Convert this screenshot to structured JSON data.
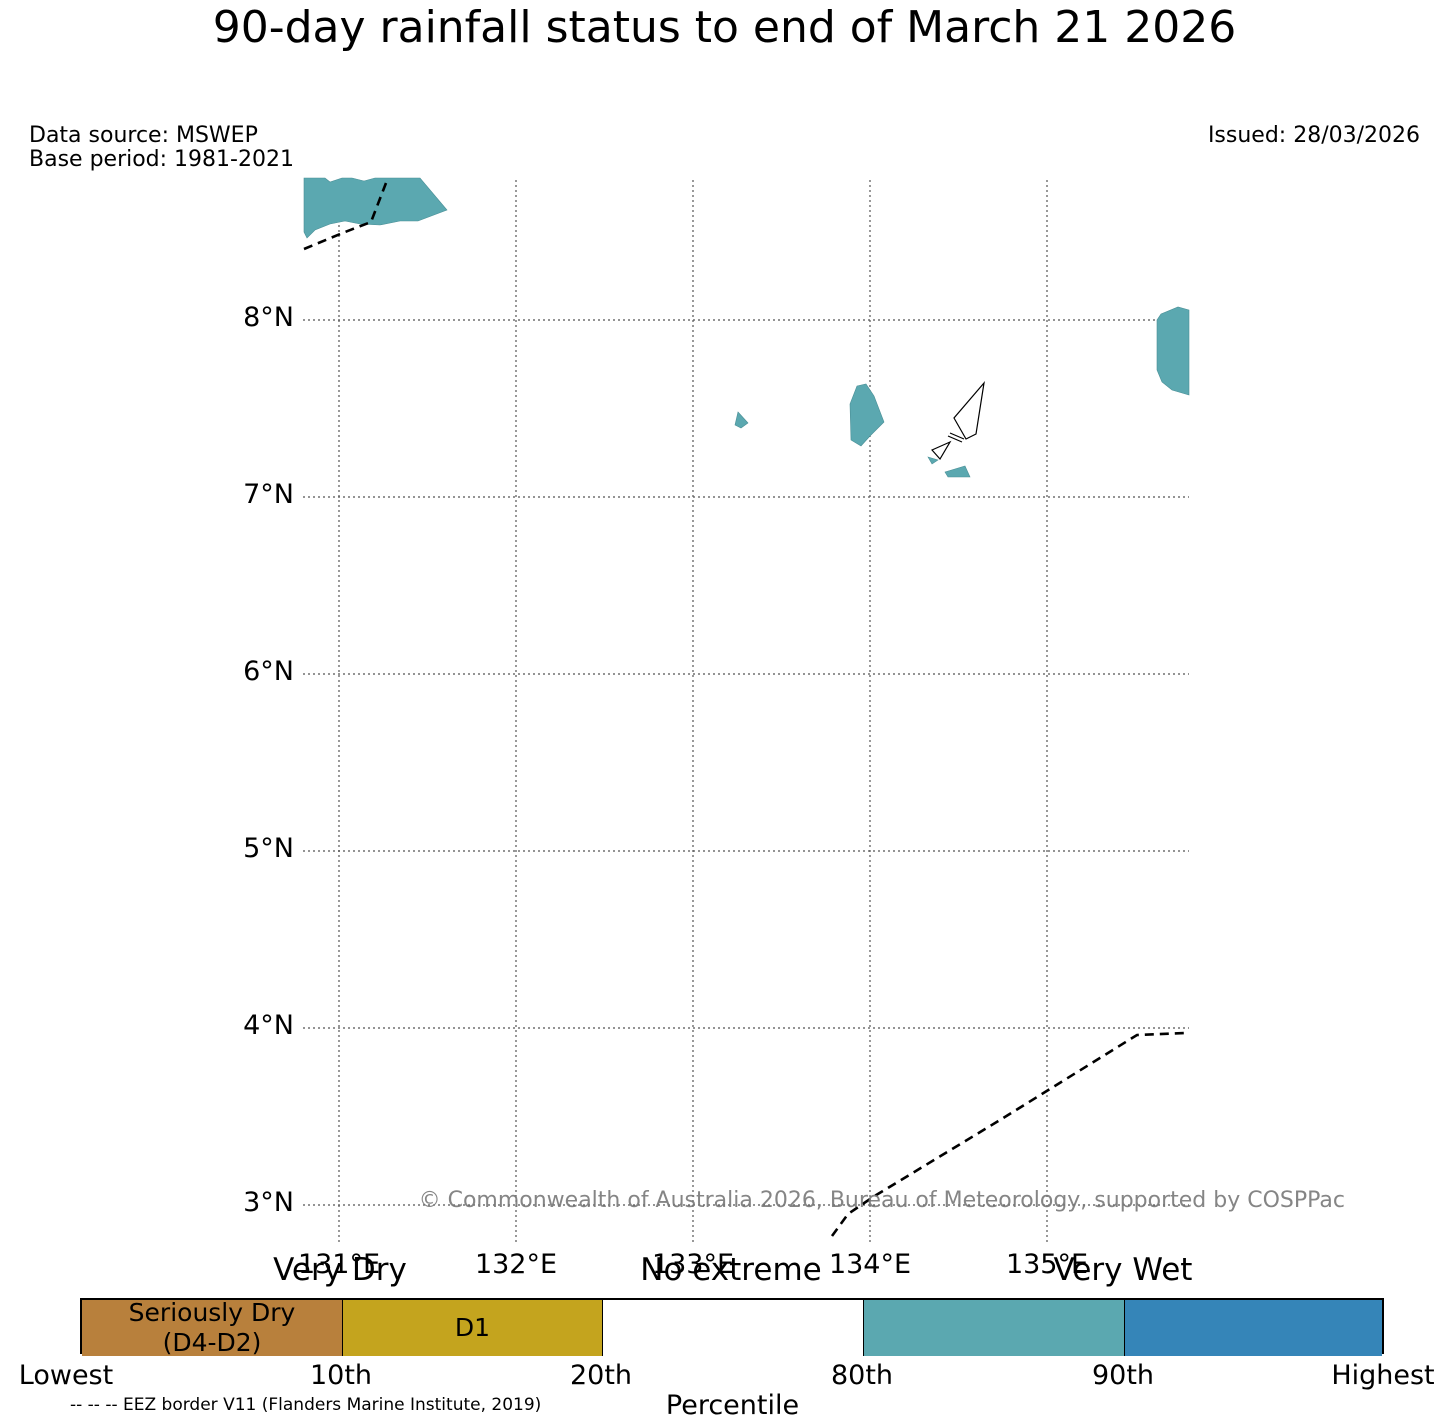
{
  "title": "90-day rainfall status to end of March 21 2026",
  "header": {
    "data_source": "Data source: MSWEP",
    "base_period": "Base period: 1981-2021",
    "issued": "Issued: 28/03/2026"
  },
  "map": {
    "lat_labels": [
      "8°N",
      "7°N",
      "6°N",
      "5°N",
      "4°N",
      "3°N"
    ],
    "lon_labels": [
      "131°E",
      "132°E",
      "133°E",
      "134°E",
      "135°E"
    ],
    "wet_color": "#5ba8b0",
    "regions": [
      {
        "name": "very-wet-north-west",
        "category": "80th-90th"
      },
      {
        "name": "very-wet-east",
        "category": "80th-90th"
      },
      {
        "name": "very-wet-islet-a",
        "category": "80th-90th"
      },
      {
        "name": "very-wet-islet-b",
        "category": "80th-90th"
      },
      {
        "name": "very-wet-islet-c",
        "category": "80th-90th"
      },
      {
        "name": "very-wet-islet-d",
        "category": "80th-90th"
      }
    ],
    "copyright": "© Commonwealth of Australia 2026, Bureau of Meteorology, supported by COSPPac"
  },
  "legend": {
    "categories": {
      "very_dry": "Very Dry",
      "no_extreme": "No extreme",
      "very_wet": "Very Wet"
    },
    "segments": [
      {
        "label_line1": "Seriously Dry",
        "label_line2": "(D4-D2)",
        "color": "#b8803c"
      },
      {
        "label_line1": "D1",
        "label_line2": "",
        "color": "#c4a41e"
      },
      {
        "label_line1": "",
        "label_line2": "",
        "color": "#ffffff"
      },
      {
        "label_line1": "",
        "label_line2": "",
        "color": "#5ba8b0"
      },
      {
        "label_line1": "",
        "label_line2": "",
        "color": "#3585b8"
      }
    ],
    "ticks": [
      "Lowest",
      "10th",
      "20th",
      "80th",
      "90th",
      "Highest"
    ],
    "axis_label": "Percentile",
    "eez_note": "-- -- -- EEZ border V11 (Flanders Marine Institute, 2019)"
  }
}
